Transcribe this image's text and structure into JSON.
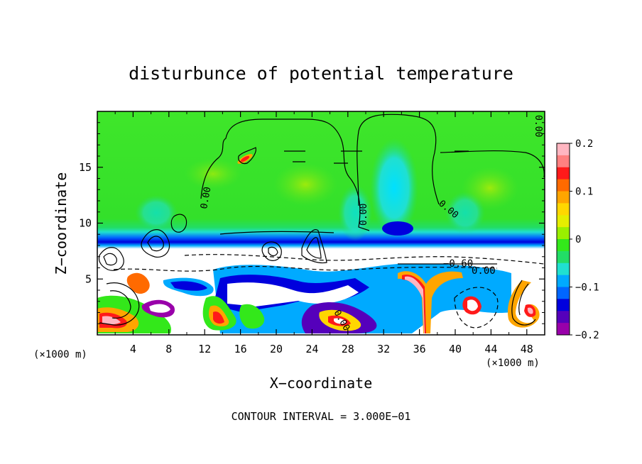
{
  "chart_data": {
    "type": "heatmap",
    "title": "disturbunce of potential temperature",
    "xlabel": "X−coordinate",
    "ylabel": "Z−coordinate",
    "x_unit_left": "(×1000 m)",
    "x_unit_right": "(×1000 m)",
    "footer": "CONTOUR INTERVAL = 3.000E−01",
    "xlim": [
      0,
      50
    ],
    "ylim": [
      0,
      20
    ],
    "x_ticks": [
      "4",
      "8",
      "12",
      "16",
      "20",
      "24",
      "28",
      "32",
      "36",
      "40",
      "44",
      "48"
    ],
    "y_ticks": [
      "5",
      "10",
      "15"
    ],
    "colorbar": {
      "range": [
        -0.2,
        0.2
      ],
      "tick_labels": [
        "0.2",
        "0.1",
        "0",
        "−0.1",
        "−0.2"
      ],
      "tick_values": [
        0.2,
        0.1,
        0,
        -0.1,
        -0.2
      ],
      "colors": [
        "#ffb6c1",
        "#ff8080",
        "#ff1a1a",
        "#ff6a00",
        "#ffa500",
        "#ffd700",
        "#e5ee00",
        "#9aef00",
        "#33e81a",
        "#22dd66",
        "#20e0d0",
        "#00aaff",
        "#0066ff",
        "#0000dd",
        "#5500bb",
        "#9900aa"
      ]
    },
    "contour_interval": 0.3,
    "contour_labels": [
      "0.00",
      "0.00",
      "0.00",
      "0.00",
      "0.00",
      "−0.60",
      "0.00"
    ],
    "grid": false,
    "legend": "right"
  }
}
